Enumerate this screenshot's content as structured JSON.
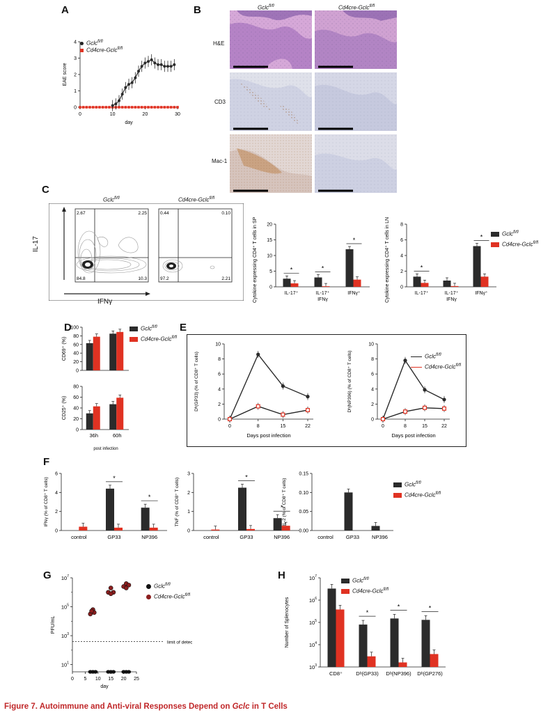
{
  "panels": {
    "A": "A",
    "B": "B",
    "C": "C",
    "D": "D",
    "E": "E",
    "F": "F",
    "G": "G",
    "H": "H"
  },
  "caption": {
    "prefix": "Figure 7. Autoimmune and Anti-viral Responses Depend on ",
    "gene": "Gclc",
    "suffix": " in T Cells"
  },
  "colors": {
    "wt": "#2b2b2b",
    "ko": "#e03222",
    "he_bg": "#c79ac7",
    "ihc_bg": "#d9dbe8",
    "brown": "#b07a4a"
  },
  "legend": {
    "wt_gene": "Gclc",
    "wt_sup": "fl/fl",
    "ko_prefix": "Cd4cre-",
    "ko_gene": "Gclc",
    "ko_sup": "fl/fl"
  },
  "panelA": {
    "ylabel": "EAE score",
    "xlabel": "day",
    "chart_data": {
      "type": "line",
      "x": [
        10,
        11,
        12,
        13,
        14,
        15,
        16,
        17,
        18,
        19,
        20,
        21,
        22,
        23,
        24,
        25,
        26,
        27,
        28,
        29
      ],
      "series": [
        {
          "name": "Gclc fl/fl",
          "values": [
            0.1,
            0.2,
            0.4,
            0.8,
            1.2,
            1.4,
            1.5,
            1.8,
            2.2,
            2.5,
            2.7,
            2.8,
            2.9,
            2.7,
            2.6,
            2.6,
            2.5,
            2.5,
            2.5,
            2.6
          ]
        },
        {
          "name": "Cd4cre-Gclc fl/fl",
          "values": [
            0,
            0,
            0,
            0,
            0,
            0,
            0,
            0,
            0,
            0,
            0,
            0,
            0,
            0,
            0,
            0,
            0,
            0,
            0,
            0
          ]
        }
      ],
      "xlim": [
        0,
        30
      ],
      "ylim": [
        0,
        4
      ],
      "xticks": [
        0,
        10,
        20,
        30
      ],
      "yticks": [
        0,
        1,
        2,
        3,
        4
      ]
    }
  },
  "panelB": {
    "col1": "Gclc",
    "col1_sup": "fl/fl",
    "col2": "Cd4cre-Gclc",
    "col2_sup": "fl/fl",
    "rows": [
      "H&E",
      "CD3",
      "Mac-1"
    ]
  },
  "panelC": {
    "title1": "Gclc",
    "title1_sup": "fl/fl",
    "title2": "Cd4cre-Gclc",
    "title2_sup": "fl/fl",
    "ylabel": "IL-17",
    "xlabel": "IFNγ",
    "q1": [
      "2.67",
      "2.25",
      "84.8",
      "10.3"
    ],
    "q2": [
      "0.44",
      "0.10",
      "97.2",
      "2.21"
    ],
    "chart_sp": {
      "type": "bar",
      "ylabel": "Cytokine expressing CD4⁺ T cells in SP (%)",
      "categories": [
        "IL-17⁺",
        "IL-17⁺ IFNγ",
        "IFNγ⁺"
      ],
      "series": [
        {
          "name": "Gclc fl/fl",
          "values": [
            2.6,
            3.0,
            12.0
          ]
        },
        {
          "name": "Cd4cre-Gclc fl/fl",
          "values": [
            1.1,
            0.2,
            2.3
          ]
        }
      ],
      "ylim": [
        0,
        20
      ],
      "yticks": [
        0,
        5,
        10,
        15,
        20
      ]
    },
    "chart_ln": {
      "type": "bar",
      "ylabel": "Cytokine expressing CD4⁺ T cells in LN (%)",
      "categories": [
        "IL-17⁺",
        "IL-17⁺ IFNγ",
        "IFNγ⁺"
      ],
      "series": [
        {
          "name": "Gclc fl/fl",
          "values": [
            1.3,
            0.8,
            5.2
          ]
        },
        {
          "name": "Cd4cre-Gclc fl/fl",
          "values": [
            0.5,
            0.1,
            1.3
          ]
        }
      ],
      "ylim": [
        0,
        8
      ],
      "yticks": [
        0,
        2,
        4,
        6,
        8
      ]
    }
  },
  "panelD": {
    "chart_cd69": {
      "type": "bar",
      "ylabel": "CD69⁺ (%)",
      "categories": [
        "36h",
        "60h"
      ],
      "series": [
        {
          "name": "Gclc fl/fl",
          "values": [
            63,
            85
          ]
        },
        {
          "name": "Cd4cre-Gclc fl/fl",
          "values": [
            78,
            89
          ]
        }
      ],
      "ylim": [
        0,
        100
      ],
      "yticks": [
        0,
        20,
        40,
        60,
        80,
        100
      ]
    },
    "chart_cd25": {
      "type": "bar",
      "ylabel": "CD25⁺ (%)",
      "categories": [
        "36h",
        "60h"
      ],
      "series": [
        {
          "name": "Gclc fl/fl",
          "values": [
            30,
            47
          ]
        },
        {
          "name": "Cd4cre-Gclc fl/fl",
          "values": [
            43,
            59
          ]
        }
      ],
      "ylim": [
        0,
        80
      ],
      "yticks": [
        0,
        20,
        40,
        60,
        80
      ]
    },
    "xlabel": "post infection"
  },
  "panelE": {
    "xlabel": "Days post infection",
    "chart_gp33": {
      "type": "line",
      "ylabel": "Dᵇ(GP33)  (% of CD8⁺ T cells)",
      "x": [
        0,
        8,
        15,
        22
      ],
      "series": [
        {
          "name": "Gclc fl/fl",
          "values": [
            0,
            8.6,
            4.4,
            3.0
          ]
        },
        {
          "name": "Cd4cre-Gclc fl/fl",
          "values": [
            0,
            1.7,
            0.6,
            1.2
          ]
        }
      ],
      "ylim": [
        0,
        10
      ],
      "yticks": [
        0,
        2,
        4,
        6,
        8,
        10
      ]
    },
    "chart_np396": {
      "type": "line",
      "ylabel": "Dᵇ(NP396)  (% of CD8⁺ T cells)",
      "x": [
        0,
        8,
        15,
        22
      ],
      "series": [
        {
          "name": "Gclc fl/fl",
          "values": [
            0,
            7.8,
            3.9,
            2.6
          ]
        },
        {
          "name": "Cd4cre-Gclc fl/fl",
          "values": [
            0,
            1.0,
            1.5,
            1.4
          ]
        }
      ],
      "ylim": [
        0,
        10
      ],
      "yticks": [
        0,
        2,
        4,
        6,
        8,
        10
      ]
    }
  },
  "panelF": {
    "chart_ifn": {
      "type": "bar",
      "ylabel": "IFNγ (% of CD8⁺ T cells)",
      "categories": [
        "control",
        "GP33",
        "NP396"
      ],
      "series": [
        {
          "name": "Gclc fl/fl",
          "values": [
            0,
            4.4,
            2.4
          ]
        },
        {
          "name": "Cd4cre-Gclc fl/fl",
          "values": [
            0.4,
            0.3,
            0.3
          ]
        }
      ],
      "ylim": [
        0,
        6
      ],
      "yticks": [
        0,
        2,
        4,
        6
      ]
    },
    "chart_tnf": {
      "type": "bar",
      "ylabel": "TNF (% of CD8⁺ T cells)",
      "categories": [
        "control",
        "GP33",
        "NP396"
      ],
      "series": [
        {
          "name": "Gclc fl/fl",
          "values": [
            0,
            2.25,
            0.65
          ]
        },
        {
          "name": "Cd4cre-Gclc fl/fl",
          "values": [
            0.05,
            0.08,
            0.25
          ]
        }
      ],
      "ylim": [
        0,
        3
      ],
      "yticks": [
        0,
        1,
        2,
        3
      ]
    },
    "chart_il2": {
      "type": "bar",
      "ylabel": "IL-2 (% of CD8⁺ T cells)",
      "categories": [
        "control",
        "GP33",
        "NP396"
      ],
      "series": [
        {
          "name": "Gclc fl/fl",
          "values": [
            0,
            0.1,
            0.012
          ]
        },
        {
          "name": "Cd4cre-Gclc fl/fl",
          "values": [
            0,
            0,
            0
          ]
        }
      ],
      "ylim": [
        0,
        0.15
      ],
      "yticks": [
        "0.00",
        "0.05",
        "0.10",
        "0.15"
      ]
    }
  },
  "panelG": {
    "ylabel": "PFU/mL",
    "xlabel": "day",
    "lod": "limit of detection",
    "chart_data": {
      "type": "scatter",
      "xlim": [
        0,
        25
      ],
      "xticks": [
        0,
        5,
        10,
        15,
        20,
        25
      ],
      "ylog": true,
      "ylim_exp": [
        1,
        7
      ],
      "series": [
        {
          "name": "Gclc fl/fl",
          "points": [
            [
              7,
              1
            ],
            [
              8,
              1
            ],
            [
              9,
              1
            ],
            [
              14,
              1
            ],
            [
              15,
              1
            ],
            [
              16,
              1
            ],
            [
              20,
              1
            ],
            [
              21,
              1
            ],
            [
              22,
              1
            ]
          ]
        },
        {
          "name": "Cd4cre-Gclc fl/fl",
          "points": [
            [
              7,
              4.5
            ],
            [
              8,
              4.8
            ],
            [
              8.5,
              4.6
            ],
            [
              7.5,
              4.7
            ],
            [
              14,
              6.0
            ],
            [
              15,
              6.3
            ],
            [
              16,
              6.0
            ],
            [
              15,
              5.9
            ],
            [
              20,
              6.4
            ],
            [
              21,
              6.6
            ],
            [
              22,
              6.5
            ],
            [
              21,
              6.3
            ]
          ]
        }
      ]
    }
  },
  "panelH": {
    "ylabel": "Number of Splenocytes",
    "chart_data": {
      "type": "bar",
      "ylog": true,
      "categories": [
        "CD8⁺",
        "Dᵇ(GP33)",
        "Dᵇ(NP396)",
        "Dᵇ(GP276)"
      ],
      "series": [
        {
          "name": "Gclc fl/fl",
          "values": [
            3300000,
            80000,
            150000,
            130000
          ]
        },
        {
          "name": "Cd4cre-Gclc fl/fl",
          "values": [
            380000,
            3000,
            1600,
            3800
          ]
        }
      ],
      "ylim_exp": [
        3,
        7
      ],
      "ytick_exps": [
        3,
        4,
        5,
        6,
        7
      ]
    }
  }
}
